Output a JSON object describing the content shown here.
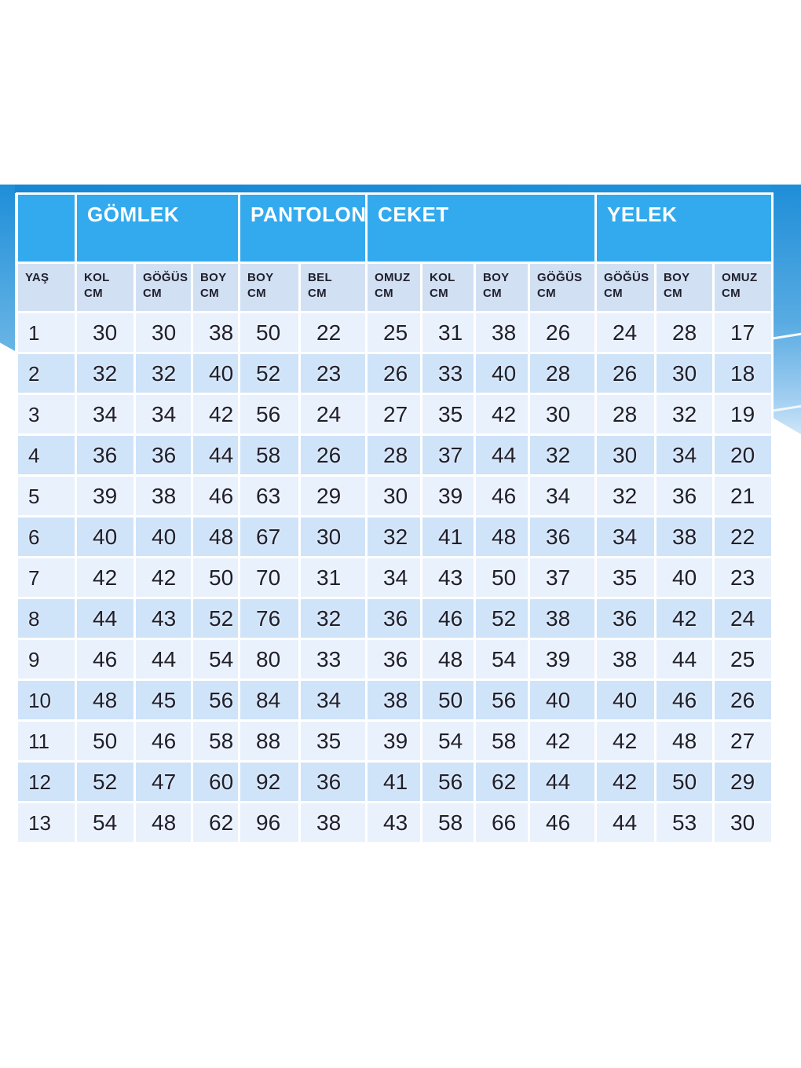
{
  "colors": {
    "header_blue": "#33aaee",
    "header_text": "#ffffff",
    "band_blue": "#1787d3",
    "shape_blue_top": "#1e8ed8",
    "subheader_bg": "#d2e0f4",
    "row_light": "#e9f1fc",
    "row_dark": "#cfe3f9",
    "text_dark": "#20202c",
    "page_background": "#ffffff"
  },
  "chart_data": {
    "type": "table",
    "section_headers": [
      {
        "label": "",
        "span": 1
      },
      {
        "label": "GÖMLEK",
        "span": 3
      },
      {
        "label": "PANTOLON",
        "span": 2
      },
      {
        "label": "CEKET",
        "span": 4
      },
      {
        "label": "YELEK",
        "span": 3
      }
    ],
    "column_headers": [
      {
        "line1": "YAŞ",
        "line2": ""
      },
      {
        "line1": "KOL",
        "line2": "CM"
      },
      {
        "line1": "GÖĞÜS",
        "line2": "CM"
      },
      {
        "line1": "BOY",
        "line2": "CM"
      },
      {
        "line1": "BOY",
        "line2": "CM"
      },
      {
        "line1": "BEL",
        "line2": "CM"
      },
      {
        "line1": "OMUZ",
        "line2": "CM"
      },
      {
        "line1": "KOL",
        "line2": "CM"
      },
      {
        "line1": "BOY",
        "line2": "CM"
      },
      {
        "line1": "GÖĞÜS",
        "line2": "CM"
      },
      {
        "line1": "GÖĞÜS",
        "line2": "CM"
      },
      {
        "line1": "BOY",
        "line2": "CM"
      },
      {
        "line1": "OMUZ",
        "line2": "CM"
      }
    ],
    "rows": [
      [
        1,
        30,
        30,
        38,
        50,
        22,
        25,
        31,
        38,
        26,
        24,
        28,
        17
      ],
      [
        2,
        32,
        32,
        40,
        52,
        23,
        26,
        33,
        40,
        28,
        26,
        30,
        18
      ],
      [
        3,
        34,
        34,
        42,
        56,
        24,
        27,
        35,
        42,
        30,
        28,
        32,
        19
      ],
      [
        4,
        36,
        36,
        44,
        58,
        26,
        28,
        37,
        44,
        32,
        30,
        34,
        20
      ],
      [
        5,
        39,
        38,
        46,
        63,
        29,
        30,
        39,
        46,
        34,
        32,
        36,
        21
      ],
      [
        6,
        40,
        40,
        48,
        67,
        30,
        32,
        41,
        48,
        36,
        34,
        38,
        22
      ],
      [
        7,
        42,
        42,
        50,
        70,
        31,
        34,
        43,
        50,
        37,
        35,
        40,
        23
      ],
      [
        8,
        44,
        43,
        52,
        76,
        32,
        36,
        46,
        52,
        38,
        36,
        42,
        24
      ],
      [
        9,
        46,
        44,
        54,
        80,
        33,
        36,
        48,
        54,
        39,
        38,
        44,
        25
      ],
      [
        10,
        48,
        45,
        56,
        84,
        34,
        38,
        50,
        56,
        40,
        40,
        46,
        26
      ],
      [
        11,
        50,
        46,
        58,
        88,
        35,
        39,
        54,
        58,
        42,
        42,
        48,
        27
      ],
      [
        12,
        52,
        47,
        60,
        92,
        36,
        41,
        56,
        62,
        44,
        42,
        50,
        29
      ],
      [
        13,
        54,
        48,
        62,
        96,
        38,
        43,
        58,
        66,
        46,
        44,
        53,
        30
      ]
    ]
  }
}
